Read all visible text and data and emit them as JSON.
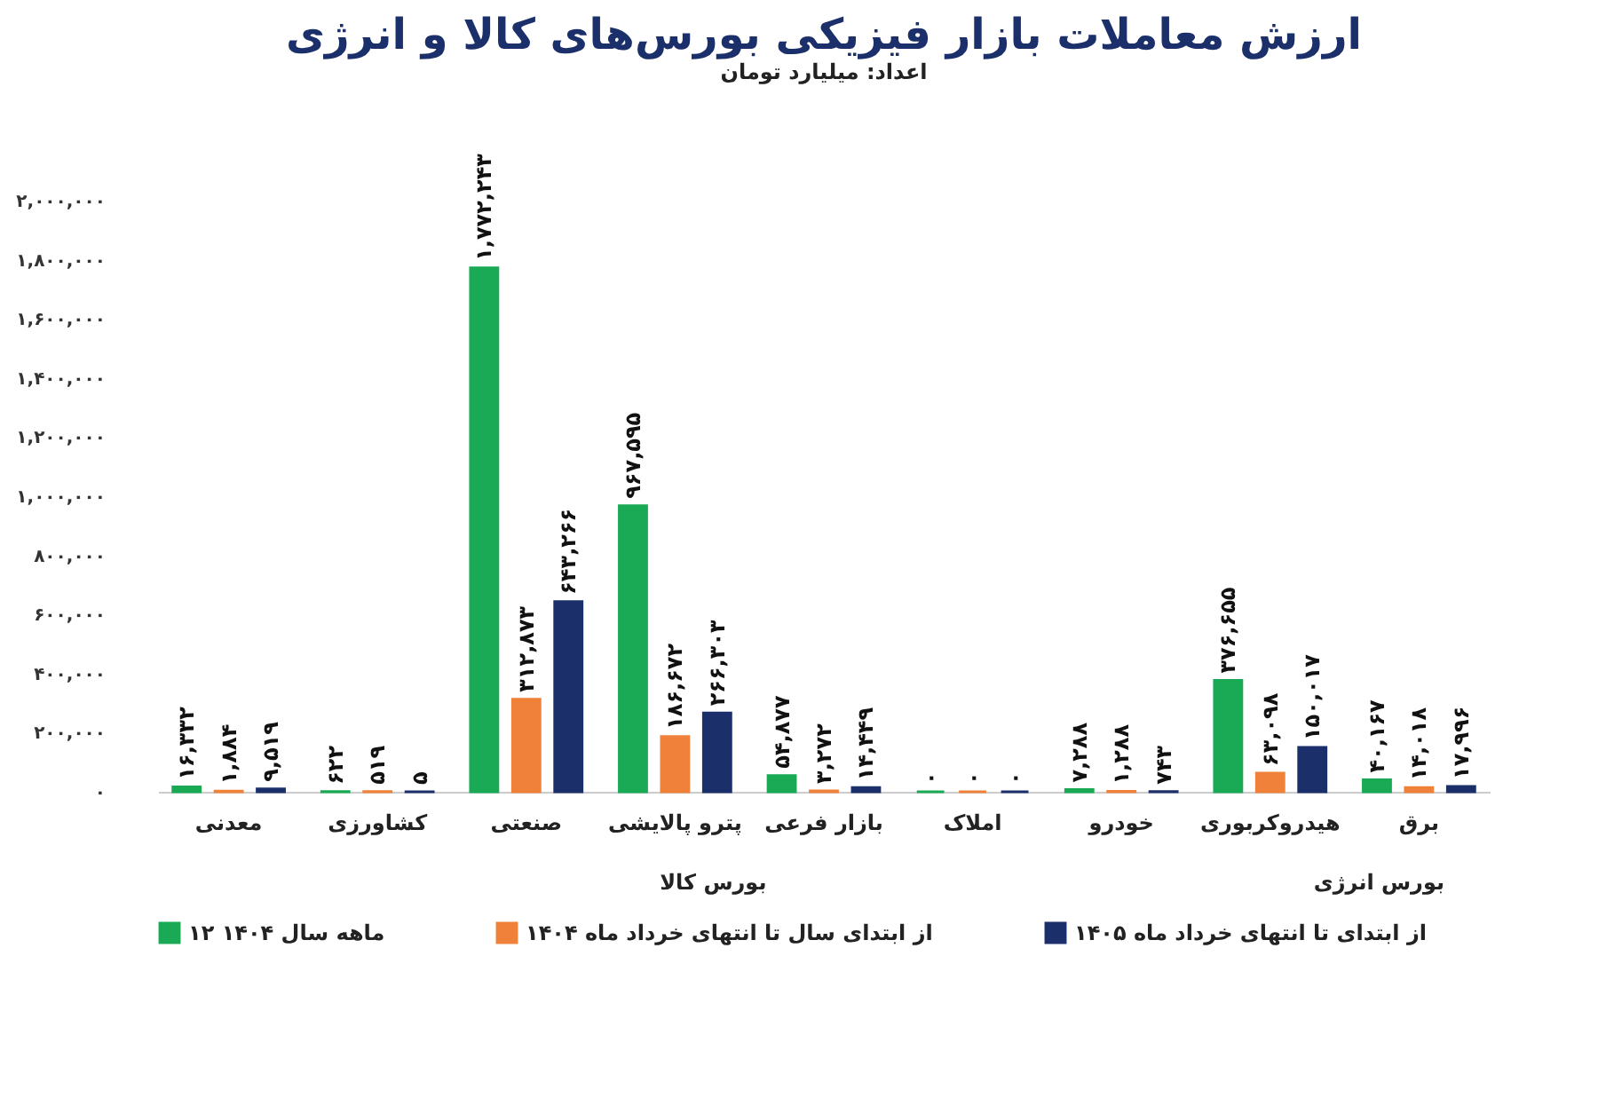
{
  "chart_data": {
    "type": "bar",
    "title": "ارزش معاملات بازار فیزیکی بورس‌های کالا و انرژی",
    "subtitle": "اعداد: میلیارد تومان",
    "categories": [
      "معدنی",
      "کشاورزی",
      "صنعتی",
      "پترو پالایشی",
      "بازار فرعی",
      "املاک",
      "خودرو",
      "هیدروکربوری",
      "برق"
    ],
    "series": [
      {
        "name": "۱۲ ماهه سال ۱۴۰۴",
        "color": "#1aaa55",
        "values": [
          16332,
          622,
          1772243,
          967595,
          54877,
          0,
          7288,
          376655,
          40167
        ],
        "value_labels": [
          "۱۶,۳۳۲",
          "۶۲۲",
          "۱,۷۷۲,۲۴۳",
          "۹۶۷,۵۹۵",
          "۵۴,۸۷۷",
          "۰",
          "۷,۲۸۸",
          "۳۷۶,۶۵۵",
          "۴۰,۱۶۷"
        ]
      },
      {
        "name": "از ابتدای سال تا انتهای خرداد ماه ۱۴۰۴",
        "color": "#f0813a",
        "values": [
          1884,
          519,
          312873,
          186672,
          3272,
          0,
          1288,
          63098,
          14018
        ],
        "value_labels": [
          "۱,۸۸۴",
          "۵۱۹",
          "۳۱۲,۸۷۳",
          "۱۸۶,۶۷۲",
          "۳,۲۷۲",
          "۰",
          "۱,۲۸۸",
          "۶۳,۰۹۸",
          "۱۴,۰۱۸"
        ]
      },
      {
        "name": "از ابتدای تا انتهای خرداد ماه ۱۴۰۵",
        "color": "#1b2f6b",
        "values": [
          9519,
          5,
          643266,
          266303,
          14449,
          0,
          743,
          150017,
          17996
        ],
        "value_labels": [
          "۹,۵۱۹",
          "۵",
          "۶۴۳,۲۶۶",
          "۲۶۶,۳۰۳",
          "۱۴,۴۴۹",
          "۰",
          "۷۴۳",
          "۱۵۰,۰۱۷",
          "۱۷,۹۹۶"
        ]
      }
    ],
    "ylim": [
      0,
      2000000
    ],
    "yticks": [
      {
        "value": 0,
        "label": "۰"
      },
      {
        "value": 200000,
        "label": "۲۰۰,۰۰۰"
      },
      {
        "value": 400000,
        "label": "۴۰۰,۰۰۰"
      },
      {
        "value": 600000,
        "label": "۶۰۰,۰۰۰"
      },
      {
        "value": 800000,
        "label": "۸۰۰,۰۰۰"
      },
      {
        "value": 1000000,
        "label": "۱,۰۰۰,۰۰۰"
      },
      {
        "value": 1200000,
        "label": "۱,۲۰۰,۰۰۰"
      },
      {
        "value": 1400000,
        "label": "۱,۴۰۰,۰۰۰"
      },
      {
        "value": 1600000,
        "label": "۱,۶۰۰,۰۰۰"
      },
      {
        "value": 1800000,
        "label": "۱,۸۰۰,۰۰۰"
      },
      {
        "value": 2000000,
        "label": "۲,۰۰۰,۰۰۰"
      }
    ],
    "annotations": [
      "بورس کالا",
      "بورس انرژی"
    ],
    "legend": "bottom",
    "grid": false
  }
}
